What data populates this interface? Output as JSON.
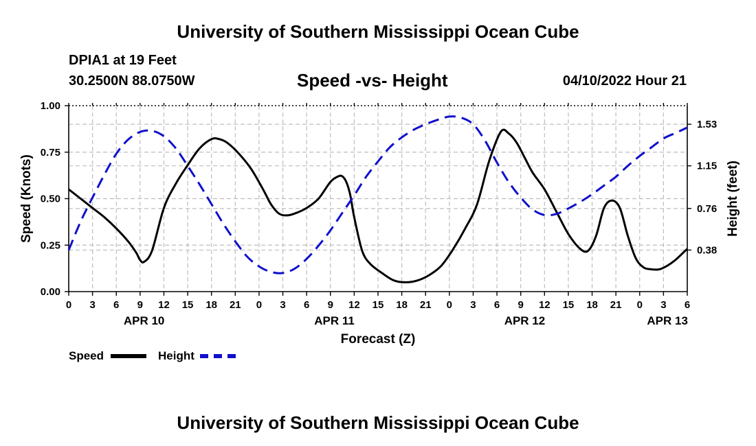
{
  "header": {
    "title": "University of Southern Mississippi Ocean Cube",
    "station": "DPIA1 at 19 Feet",
    "coords": "30.2500N  88.0750W",
    "plot_title": "Speed -vs- Height",
    "datetime": "04/10/2022 Hour 21"
  },
  "footer": {
    "title": "University of Southern Mississippi Ocean Cube"
  },
  "legend": {
    "speed_label": "Speed",
    "height_label": "Height"
  },
  "chart_data": {
    "type": "line",
    "title": "Speed -vs- Height",
    "xlabel": "Forecast (Z)",
    "ylabel": "Speed (Knots)",
    "y2label": "Height (feet)",
    "x_unit": "hours since APR 10 00Z",
    "xlim": [
      0,
      78
    ],
    "ylim": [
      0,
      1.0
    ],
    "y2lim": [
      0.0,
      1.7
    ],
    "x_ticks": [
      0,
      3,
      6,
      9,
      12,
      15,
      18,
      21,
      24,
      27,
      30,
      33,
      36,
      39,
      42,
      45,
      48,
      51,
      54,
      57,
      60,
      63,
      66,
      69,
      72,
      75,
      78
    ],
    "x_tick_labels": [
      "0",
      "3",
      "6",
      "9",
      "12",
      "15",
      "18",
      "21",
      "0",
      "3",
      "6",
      "9",
      "12",
      "15",
      "18",
      "21",
      "0",
      "3",
      "6",
      "9",
      "12",
      "15",
      "18",
      "21",
      "0",
      "3",
      "6"
    ],
    "date_labels": [
      {
        "x": 9.5,
        "label": "APR 10"
      },
      {
        "x": 33.5,
        "label": "APR 11"
      },
      {
        "x": 57.5,
        "label": "APR 12"
      },
      {
        "x": 75.5,
        "label": "APR 13"
      }
    ],
    "y_ticks": [
      0.0,
      0.25,
      0.5,
      0.75,
      1.0
    ],
    "y_tick_labels": [
      "0.00",
      "0.25",
      "0.50",
      "0.75",
      "1.00"
    ],
    "y2_ticks": [
      0.38,
      0.76,
      1.15,
      1.53
    ],
    "y2_tick_labels": [
      "0.38",
      "0.76",
      "1.15",
      "1.53"
    ],
    "grid": true,
    "series": [
      {
        "name": "Speed",
        "axis": "left",
        "color": "#000000",
        "dash": "solid",
        "x": [
          0,
          1.5,
          3,
          4.5,
          6,
          7.5,
          8.5,
          9,
          9.5,
          10.5,
          12,
          13.5,
          15,
          16.5,
          18,
          19,
          20,
          21.5,
          23,
          24.5,
          25.5,
          26.5,
          27.5,
          28.5,
          30,
          31.5,
          33,
          34,
          34.5,
          35,
          35.5,
          36,
          37,
          38,
          39.5,
          41,
          42.5,
          44,
          45.5,
          47,
          48.5,
          50,
          51.5,
          53,
          54.5,
          55.5,
          56.5,
          57.5,
          58.5,
          60,
          61.5,
          63,
          64.5,
          65.5,
          66.5,
          67.5,
          68.5,
          69.5,
          70.5,
          71.5,
          72.5,
          73.5,
          74.5,
          75.5,
          76.5,
          77.5,
          78
        ],
        "y": [
          0.55,
          0.5,
          0.45,
          0.4,
          0.34,
          0.27,
          0.21,
          0.17,
          0.16,
          0.22,
          0.45,
          0.58,
          0.68,
          0.77,
          0.82,
          0.82,
          0.8,
          0.74,
          0.66,
          0.55,
          0.47,
          0.42,
          0.41,
          0.42,
          0.45,
          0.5,
          0.59,
          0.62,
          0.62,
          0.59,
          0.52,
          0.4,
          0.22,
          0.15,
          0.1,
          0.06,
          0.05,
          0.06,
          0.09,
          0.14,
          0.23,
          0.34,
          0.47,
          0.7,
          0.86,
          0.85,
          0.8,
          0.72,
          0.64,
          0.55,
          0.43,
          0.31,
          0.23,
          0.22,
          0.3,
          0.45,
          0.49,
          0.45,
          0.3,
          0.18,
          0.13,
          0.12,
          0.12,
          0.14,
          0.17,
          0.21,
          0.23
        ]
      },
      {
        "name": "Height",
        "axis": "right",
        "color": "#1010cc",
        "dash": "dashed",
        "x": [
          0,
          1.5,
          3,
          4.5,
          6,
          7.5,
          9,
          10.5,
          12,
          13.5,
          15,
          16.5,
          18,
          19.5,
          21,
          22.5,
          24,
          25.5,
          27,
          28.5,
          30,
          31.5,
          33,
          34.5,
          36,
          37.5,
          39,
          40.5,
          42,
          43.5,
          45,
          46.5,
          48,
          49.5,
          51,
          52.5,
          54,
          55.5,
          57,
          58.5,
          60,
          61.5,
          63,
          64.5,
          66,
          67.5,
          69,
          70.5,
          72,
          73.5,
          75,
          76.5,
          78
        ],
        "y": [
          0.38,
          0.64,
          0.86,
          1.07,
          1.26,
          1.39,
          1.46,
          1.47,
          1.42,
          1.31,
          1.15,
          0.98,
          0.8,
          0.62,
          0.46,
          0.32,
          0.23,
          0.18,
          0.17,
          0.21,
          0.3,
          0.42,
          0.56,
          0.72,
          0.88,
          1.05,
          1.19,
          1.32,
          1.41,
          1.48,
          1.53,
          1.57,
          1.6,
          1.59,
          1.53,
          1.38,
          1.18,
          1.0,
          0.86,
          0.75,
          0.7,
          0.71,
          0.76,
          0.82,
          0.89,
          0.97,
          1.05,
          1.15,
          1.24,
          1.32,
          1.4,
          1.45,
          1.5
        ]
      }
    ]
  }
}
